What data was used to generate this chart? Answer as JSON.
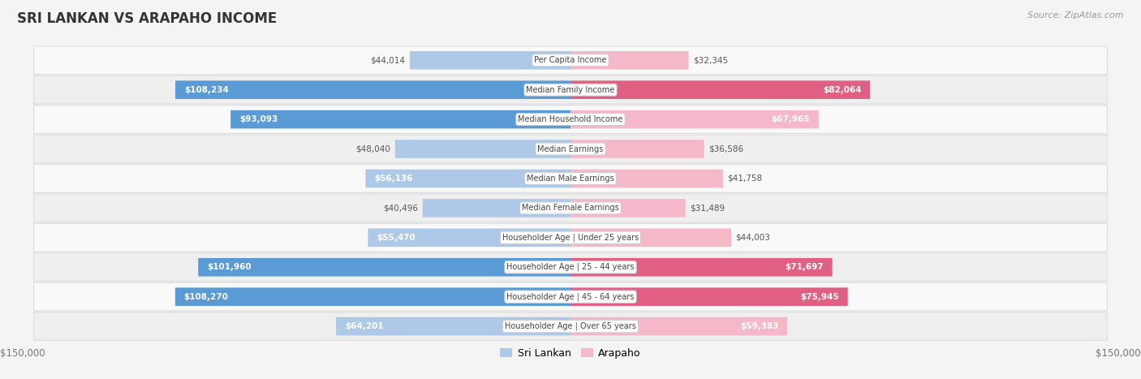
{
  "title": "SRI LANKAN VS ARAPAHO INCOME",
  "source": "Source: ZipAtlas.com",
  "categories": [
    "Per Capita Income",
    "Median Family Income",
    "Median Household Income",
    "Median Earnings",
    "Median Male Earnings",
    "Median Female Earnings",
    "Householder Age | Under 25 years",
    "Householder Age | 25 - 44 years",
    "Householder Age | 45 - 64 years",
    "Householder Age | Over 65 years"
  ],
  "sri_lankan": [
    44014,
    108234,
    93093,
    48040,
    56136,
    40496,
    55470,
    101960,
    108270,
    64201
  ],
  "arapaho": [
    32345,
    82064,
    67965,
    36586,
    41758,
    31489,
    44003,
    71697,
    75945,
    59383
  ],
  "sri_lankan_labels": [
    "$44,014",
    "$108,234",
    "$93,093",
    "$48,040",
    "$56,136",
    "$40,496",
    "$55,470",
    "$101,960",
    "$108,270",
    "$64,201"
  ],
  "arapaho_labels": [
    "$32,345",
    "$82,064",
    "$67,965",
    "$36,586",
    "$41,758",
    "$31,489",
    "$44,003",
    "$71,697",
    "$75,945",
    "$59,383"
  ],
  "max_val": 150000,
  "sri_lankan_color_light": "#aec9e8",
  "sri_lankan_color_dark": "#5b9bd5",
  "arapaho_color_light": "#f4b8c8",
  "arapaho_color_dark": "#e05f82",
  "threshold_dark": 70000,
  "bg_color": "#f4f4f4",
  "row_color_odd": "#f9f9f9",
  "row_color_even": "#efefef",
  "label_inside_color": "#ffffff",
  "label_outside_color": "#555555",
  "inside_threshold": 55000,
  "title_color": "#333333",
  "source_color": "#999999",
  "axis_label_color": "#777777",
  "legend_label_sri": "Sri Lankan",
  "legend_label_ara": "Arapaho"
}
